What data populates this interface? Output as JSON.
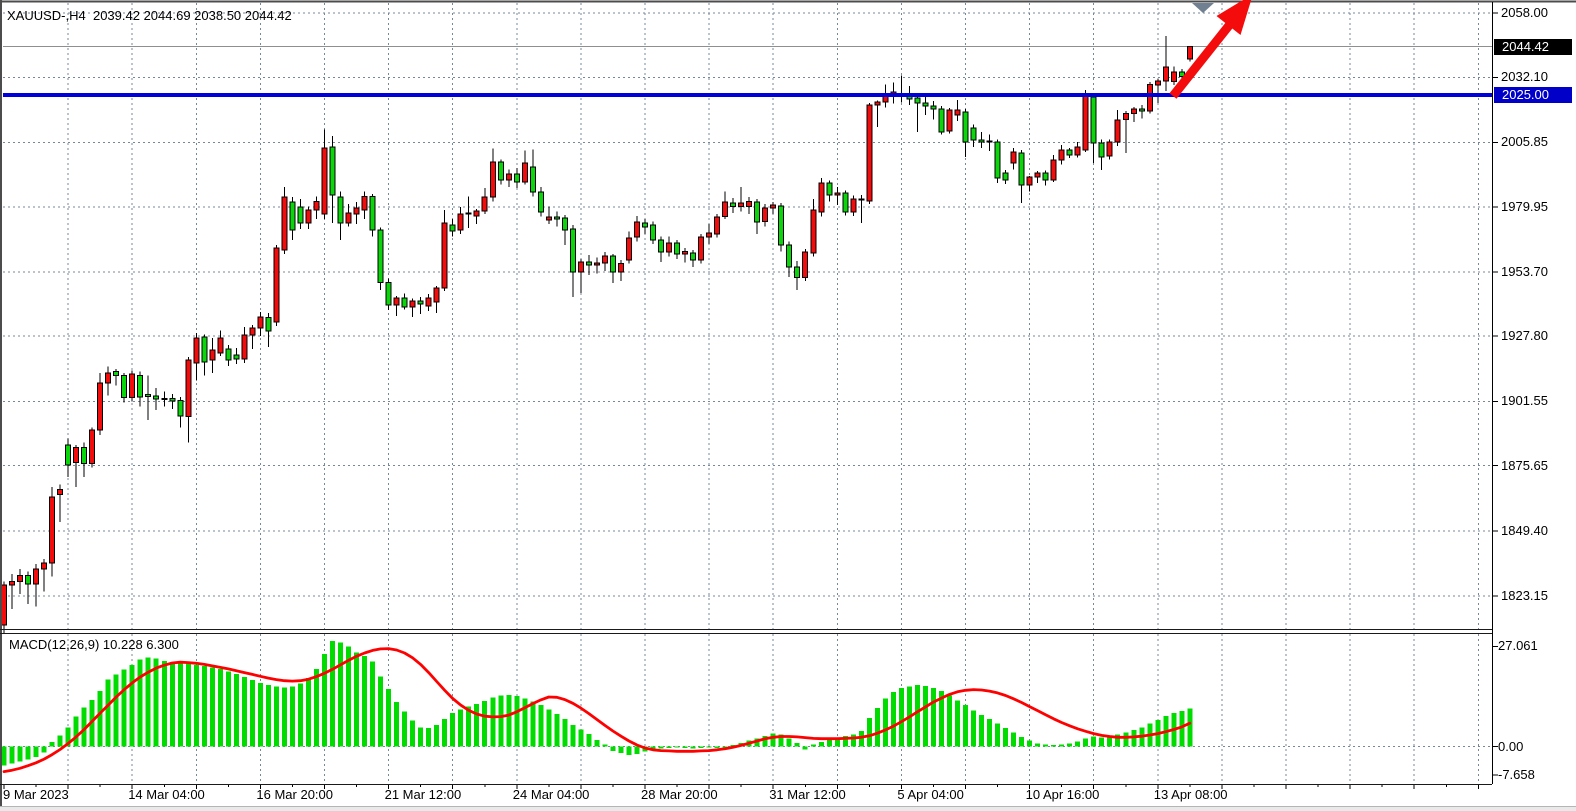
{
  "header": {
    "line": "XAUUSD-,H4  2039.42 2044.69 2038.50 2044.42",
    "symbol": "XAUUSD-",
    "timeframe": "H4",
    "open": "2039.42",
    "high": "2044.69",
    "low": "2038.50",
    "close": "2044.42"
  },
  "price_axis": {
    "labels": [
      {
        "text": "2058.00",
        "price": 2058.0
      },
      {
        "text": "2032.10",
        "price": 2032.1
      },
      {
        "text": "2005.85",
        "price": 2005.85
      },
      {
        "text": "1979.95",
        "price": 1979.95
      },
      {
        "text": "1953.70",
        "price": 1953.7
      },
      {
        "text": "1927.80",
        "price": 1927.8
      },
      {
        "text": "1901.55",
        "price": 1901.55
      },
      {
        "text": "1875.65",
        "price": 1875.65
      },
      {
        "text": "1849.40",
        "price": 1849.4
      },
      {
        "text": "1823.15",
        "price": 1823.15
      }
    ],
    "current_tag": {
      "text": "2044.42",
      "price": 2044.42,
      "bg": "#000000",
      "fg": "#ffffff"
    },
    "level_tag": {
      "text": "2025.00",
      "price": 2025.0,
      "bg": "#0000c8",
      "fg": "#ffffff"
    }
  },
  "time_axis": {
    "labels": [
      {
        "text": "9 Mar 2023",
        "grid": 0
      },
      {
        "text": "14 Mar 04:00",
        "grid": 2
      },
      {
        "text": "16 Mar 20:00",
        "grid": 4
      },
      {
        "text": "21 Mar 12:00",
        "grid": 6
      },
      {
        "text": "24 Mar 04:00",
        "grid": 8
      },
      {
        "text": "28 Mar 20:00",
        "grid": 10
      },
      {
        "text": "31 Mar 12:00",
        "grid": 12
      },
      {
        "text": "5 Apr 04:00",
        "grid": 14
      },
      {
        "text": "10 Apr 16:00",
        "grid": 16
      },
      {
        "text": "13 Apr 08:00",
        "grid": 18
      }
    ]
  },
  "macd": {
    "label_line": "MACD(12,26,9) 10.228 6.300",
    "axis": [
      {
        "text": "27.061",
        "value": 27.061
      },
      {
        "text": "0.00",
        "value": 0
      },
      {
        "text": "-7.658",
        "value": -7.658
      }
    ]
  },
  "annotations": {
    "arrow": {
      "name": "bullish-breakout-arrow",
      "color": "#f40b0b"
    },
    "shift_marker": {
      "name": "chart-shift-marker",
      "color": "#708090"
    },
    "level_line": {
      "price": 2025.0,
      "color": "#0000d8"
    },
    "bid_line": {
      "price": 2044.42,
      "color": "#8f8f8f"
    }
  },
  "colors": {
    "bull_body": "#f20c0c",
    "bear_body": "#0bd60b",
    "bar_outline": "#000000",
    "grid": "#778899",
    "macd_hist": "#00dc00",
    "macd_signal": "#ff0000",
    "background": "#ffffff",
    "text": "#000000"
  },
  "chart_data": {
    "type": "candlestick",
    "symbol": "XAUUSD-",
    "timeframe": "H4",
    "ylim": [
      1810,
      2058
    ],
    "price_gridlines": [
      2058.0,
      2032.1,
      2005.85,
      1979.95,
      1953.7,
      1927.8,
      1901.55,
      1875.65,
      1849.4,
      1823.15
    ],
    "last_ohlc": {
      "open": 2039.42,
      "high": 2044.69,
      "low": 2038.5,
      "close": 2044.42
    },
    "candles": [
      [
        1811.5,
        1829,
        1808,
        1827.5
      ],
      [
        1827.5,
        1832,
        1818,
        1829
      ],
      [
        1829,
        1834,
        1824,
        1831.5
      ],
      [
        1831.5,
        1833,
        1820,
        1828
      ],
      [
        1828,
        1836,
        1819,
        1834
      ],
      [
        1834,
        1838,
        1825,
        1836.5
      ],
      [
        1836.5,
        1867,
        1831,
        1863
      ],
      [
        1864,
        1868,
        1853,
        1866
      ],
      [
        1884,
        1886.5,
        1871,
        1876
      ],
      [
        1877,
        1884,
        1867,
        1883
      ],
      [
        1883,
        1885,
        1871,
        1876.5
      ],
      [
        1876.5,
        1891,
        1875,
        1890
      ],
      [
        1890,
        1913,
        1888,
        1909
      ],
      [
        1909,
        1915.5,
        1904,
        1913
      ],
      [
        1913.5,
        1914.5,
        1908,
        1912
      ],
      [
        1912,
        1913,
        1901,
        1903
      ],
      [
        1903,
        1914,
        1901.5,
        1912.6
      ],
      [
        1912,
        1913.5,
        1899.5,
        1903.3
      ],
      [
        1904.3,
        1912,
        1894,
        1903.5
      ],
      [
        1903.8,
        1907,
        1898,
        1902.5
      ],
      [
        1902.5,
        1905.5,
        1899.5,
        1902.8
      ],
      [
        1902.8,
        1904.5,
        1898.5,
        1901.8
      ],
      [
        1902,
        1903.3,
        1891,
        1895.6
      ],
      [
        1895.5,
        1919.4,
        1885,
        1918.2
      ],
      [
        1917,
        1929,
        1910,
        1927.1
      ],
      [
        1927.5,
        1928.5,
        1912,
        1917.4
      ],
      [
        1918.2,
        1927,
        1913,
        1922.2
      ],
      [
        1921,
        1930,
        1919.8,
        1927.1
      ],
      [
        1922.6,
        1924.2,
        1915.8,
        1918.2
      ],
      [
        1920.2,
        1923,
        1916.6,
        1918.6
      ],
      [
        1918.6,
        1931.5,
        1917,
        1928.3
      ],
      [
        1928.3,
        1932.3,
        1922.7,
        1931.1
      ],
      [
        1931.1,
        1937.6,
        1927.9,
        1935.5
      ],
      [
        1935.3,
        1937.2,
        1923.4,
        1930
      ],
      [
        1933.5,
        1964.5,
        1932,
        1963.3
      ],
      [
        1962.5,
        1988,
        1961,
        1983.9
      ],
      [
        1981.9,
        1983.9,
        1966.6,
        1970.6
      ],
      [
        1979.9,
        1983,
        1971,
        1973.4
      ],
      [
        1973.4,
        1980,
        1971,
        1978.6
      ],
      [
        1978.6,
        1984,
        1975,
        1982
      ],
      [
        1977,
        2011,
        1975,
        2003.6
      ],
      [
        2004,
        2008.4,
        1973.4,
        1984.7
      ],
      [
        1983.9,
        1986,
        1966.6,
        1973.4
      ],
      [
        1973.4,
        1981,
        1972,
        1977.4
      ],
      [
        1977,
        1981.9,
        1973,
        1979.5
      ],
      [
        1978.7,
        1986,
        1975,
        1984
      ],
      [
        1984,
        1985,
        1968,
        1970.5
      ],
      [
        1970.5,
        1971.5,
        1946.4,
        1949.5
      ],
      [
        1949.5,
        1951,
        1938.4,
        1940.4
      ],
      [
        1940.4,
        1944,
        1936,
        1943.2
      ],
      [
        1943.2,
        1945,
        1938.5,
        1939.6
      ],
      [
        1939.6,
        1943,
        1935.5,
        1942
      ],
      [
        1942,
        1943.6,
        1936.8,
        1940.8
      ],
      [
        1940,
        1944.8,
        1938,
        1943.2
      ],
      [
        1941.6,
        1948,
        1937.2,
        1947.2
      ],
      [
        1947.2,
        1978.6,
        1946,
        1973.4
      ],
      [
        1972.6,
        1975,
        1968,
        1970.2
      ],
      [
        1970.6,
        1979.9,
        1969,
        1977
      ],
      [
        1977,
        1984,
        1971.4,
        1977.4
      ],
      [
        1976.2,
        1979,
        1973,
        1978.2
      ],
      [
        1978.2,
        1987.5,
        1977,
        1983.9
      ],
      [
        1983.9,
        2003.5,
        1982,
        1998
      ],
      [
        1998,
        1999,
        1989,
        1990.7
      ],
      [
        1990.7,
        1995,
        1988,
        1993.2
      ],
      [
        1993.2,
        1995.6,
        1987.5,
        1989.9
      ],
      [
        1989.9,
        2002.7,
        1989,
        1997.6
      ],
      [
        1996,
        2003.1,
        1984,
        1985.9
      ],
      [
        1985.9,
        1987.9,
        1976,
        1977.8
      ],
      [
        1974.6,
        1980,
        1973,
        1975.8
      ],
      [
        1975.8,
        1978,
        1972,
        1975
      ],
      [
        1975.4,
        1976.6,
        1964.6,
        1970.6
      ],
      [
        1971,
        1972.6,
        1943.6,
        1953.7
      ],
      [
        1953.7,
        1959,
        1945.3,
        1957.7
      ],
      [
        1957.7,
        1960.5,
        1952.5,
        1956.5
      ],
      [
        1956.5,
        1959.5,
        1953,
        1957.3
      ],
      [
        1957.3,
        1961.7,
        1954,
        1960.1
      ],
      [
        1960.1,
        1961,
        1949.2,
        1953.7
      ],
      [
        1953.7,
        1958.5,
        1950,
        1957
      ],
      [
        1958.5,
        1970,
        1957,
        1967.4
      ],
      [
        1967.8,
        1976.2,
        1966,
        1973.8
      ],
      [
        1973.4,
        1975,
        1969,
        1971.8
      ],
      [
        1972.6,
        1974,
        1965,
        1966.6
      ],
      [
        1966.6,
        1968,
        1957.7,
        1961.7
      ],
      [
        1961.7,
        1968,
        1960,
        1965.4
      ],
      [
        1965.4,
        1966.5,
        1958.9,
        1961
      ],
      [
        1961,
        1963.3,
        1957.5,
        1962
      ],
      [
        1961.3,
        1962.5,
        1955.6,
        1958.5
      ],
      [
        1958.5,
        1969,
        1957,
        1967.8
      ],
      [
        1967.8,
        1973,
        1965,
        1969.4
      ],
      [
        1969,
        1977,
        1967.5,
        1975.8
      ],
      [
        1976,
        1986,
        1975,
        1981.9
      ],
      [
        1981.5,
        1983.5,
        1977.5,
        1980
      ],
      [
        1980,
        1988,
        1978,
        1981.5
      ],
      [
        1980,
        1983.9,
        1977,
        1982
      ],
      [
        1981.9,
        1983,
        1969,
        1973.8
      ],
      [
        1974,
        1981,
        1972,
        1979.5
      ],
      [
        1979.5,
        1981.9,
        1977,
        1980.7
      ],
      [
        1980.3,
        1981.5,
        1962,
        1964.5
      ],
      [
        1964.5,
        1966,
        1951.7,
        1955.7
      ],
      [
        1955.7,
        1958,
        1946.5,
        1951.5
      ],
      [
        1951.5,
        1963,
        1950,
        1961.7
      ],
      [
        1961.3,
        1983,
        1960,
        1978.6
      ],
      [
        1977.9,
        1991.5,
        1976,
        1989.5
      ],
      [
        1989.5,
        1990.5,
        1982,
        1984.7
      ],
      [
        1984.7,
        1988,
        1980.7,
        1985.5
      ],
      [
        1985.5,
        1986.5,
        1976.5,
        1977.8
      ],
      [
        1977.8,
        1984.5,
        1976.2,
        1983.1
      ],
      [
        1983.1,
        1984.7,
        1973.4,
        1982.7
      ],
      [
        1982.3,
        2021.7,
        1981,
        2020.9
      ],
      [
        2020.9,
        2022.7,
        2012.1,
        2022.1
      ],
      [
        2022.1,
        2029.1,
        2020,
        2025
      ],
      [
        2024.6,
        2030,
        2021.5,
        2026.2
      ],
      [
        2024.8,
        2032.9,
        2022,
        2025
      ],
      [
        2025,
        2028.5,
        2021,
        2023.4
      ],
      [
        2023.8,
        2025.5,
        2010.1,
        2021.7
      ],
      [
        2021.7,
        2024.5,
        2017,
        2020.5
      ],
      [
        2020.5,
        2022.5,
        2015,
        2019.3
      ],
      [
        2019.3,
        2020.5,
        2009,
        2010.1
      ],
      [
        2010.5,
        2019.8,
        2009.5,
        2018.9
      ],
      [
        2016.9,
        2022.9,
        2014.5,
        2018.9
      ],
      [
        2018.1,
        2019.3,
        1999.9,
        2006
      ],
      [
        2011.7,
        2013,
        2004,
        2006.9
      ],
      [
        2006.9,
        2010.1,
        2003.6,
        2006.1
      ],
      [
        2006.1,
        2009,
        2002.5,
        2006.5
      ],
      [
        2006,
        2007,
        1989.5,
        1991.5
      ],
      [
        1993.6,
        1994.8,
        1989.1,
        1990.7
      ],
      [
        1997.6,
        2003.7,
        1995,
        2002
      ],
      [
        2001.6,
        2002.8,
        1981.5,
        1988.7
      ],
      [
        1988.7,
        1992.3,
        1986,
        1991.9
      ],
      [
        1991.9,
        1994.4,
        1989.5,
        1993.6
      ],
      [
        1993.6,
        1994.5,
        1988.5,
        1990.8
      ],
      [
        1990.8,
        2000.8,
        1990,
        1998.8
      ],
      [
        1998.8,
        2004.8,
        1997,
        2002.8
      ],
      [
        2002.8,
        2003.6,
        1999.5,
        2000.8
      ],
      [
        2000.8,
        2006,
        1999.8,
        2004
      ],
      [
        2002.8,
        2027,
        2002,
        2025
      ],
      [
        2024.2,
        2025.8,
        1997.6,
        2005.7
      ],
      [
        2005.7,
        2007,
        1994.7,
        1999.9
      ],
      [
        2000.3,
        2007,
        1999,
        2006
      ],
      [
        2006,
        2019,
        2004.5,
        2014.9
      ],
      [
        2015,
        2018.5,
        2001.6,
        2017.5
      ],
      [
        2017.5,
        2020.1,
        2014,
        2019.3
      ],
      [
        2019.3,
        2021,
        2015.5,
        2018.5
      ],
      [
        2018.5,
        2030.3,
        2017.5,
        2029.1
      ],
      [
        2029.1,
        2031.5,
        2021.7,
        2030.7
      ],
      [
        2030.7,
        2048.7,
        2026.5,
        2036.3
      ],
      [
        2030.5,
        2036.5,
        2029,
        2034.2
      ],
      [
        2034.2,
        2035.5,
        2029.5,
        2032.5
      ],
      [
        2039.42,
        2044.69,
        2038.5,
        2044.42
      ]
    ],
    "macd": {
      "type": "macd",
      "params": [
        12,
        26,
        9
      ],
      "current": 10.228,
      "current_signal": 6.3,
      "ylim": [
        -7.658,
        27.061
      ],
      "histogram": [
        -5.1,
        -4.6,
        -4.1,
        -3.5,
        -2.8,
        -1.6,
        1.2,
        3.0,
        5.2,
        8.1,
        10.5,
        12.6,
        15.0,
        18.1,
        19.5,
        20.8,
        22.0,
        23.5,
        24.1,
        23.8,
        23.2,
        22.8,
        22.6,
        22.4,
        22.1,
        21.8,
        21.4,
        21.0,
        20.3,
        19.6,
        18.8,
        18.0,
        17.2,
        16.6,
        16.2,
        16.0,
        16.3,
        17.0,
        18.5,
        21.0,
        25.0,
        28.6,
        28.2,
        27.0,
        25.5,
        24.5,
        23.0,
        19.0,
        15.5,
        12.0,
        9.5,
        7.0,
        5.2,
        5.0,
        5.8,
        7.5,
        9.0,
        10.0,
        10.8,
        11.5,
        12.3,
        13.2,
        13.8,
        14.0,
        13.6,
        13.0,
        12.2,
        11.2,
        10.0,
        8.8,
        7.5,
        5.8,
        4.6,
        3.4,
        1.8,
        0.6,
        -1.2,
        -1.8,
        -2.3,
        -2.0,
        -1.4,
        -0.8,
        -0.5,
        -0.4,
        -0.3,
        -0.4,
        -0.5,
        -0.4,
        -0.3,
        -0.4,
        -0.2,
        0.4,
        1.0,
        1.6,
        2.2,
        2.9,
        3.5,
        3.2,
        2.2,
        1.0,
        -0.8,
        0.6,
        1.2,
        1.8,
        2.3,
        2.8,
        3.3,
        4.2,
        7.7,
        10.4,
        13.0,
        14.8,
        15.8,
        16.3,
        16.7,
        16.4,
        15.8,
        15.0,
        13.8,
        12.5,
        11.2,
        9.8,
        8.5,
        7.4,
        6.2,
        5.0,
        3.8,
        2.6,
        1.6,
        0.8,
        0.5,
        0.4,
        0.5,
        0.8,
        1.4,
        2.2,
        2.7,
        2.5,
        2.8,
        3.2,
        3.8,
        4.4,
        5.2,
        6.2,
        7.2,
        8.2,
        9.0,
        9.6,
        10.228
      ],
      "signal": [
        -6.8,
        -6.4,
        -5.9,
        -5.2,
        -4.4,
        -3.4,
        -2.2,
        -0.8,
        0.8,
        2.6,
        4.6,
        6.8,
        9.0,
        11.2,
        13.4,
        15.4,
        17.2,
        18.8,
        20.1,
        21.2,
        22.0,
        22.6,
        22.8,
        22.7,
        22.5,
        22.2,
        21.8,
        21.4,
        21.0,
        20.5,
        20.0,
        19.5,
        19.0,
        18.5,
        18.1,
        17.8,
        17.7,
        17.8,
        18.2,
        18.9,
        19.8,
        20.9,
        22.1,
        23.3,
        24.4,
        25.3,
        26.0,
        26.4,
        26.5,
        26.1,
        25.3,
        24.0,
        22.2,
        20.0,
        17.6,
        15.2,
        13.0,
        11.2,
        9.8,
        8.8,
        8.2,
        8.0,
        8.1,
        8.5,
        9.4,
        10.5,
        11.6,
        12.6,
        13.4,
        13.3,
        12.7,
        11.7,
        10.4,
        8.9,
        7.3,
        5.7,
        4.2,
        2.8,
        1.5,
        0.4,
        -0.4,
        -0.9,
        -1.1,
        -1.2,
        -1.3,
        -1.3,
        -1.3,
        -1.2,
        -1.1,
        -0.9,
        -0.6,
        -0.2,
        0.3,
        0.9,
        1.5,
        2.1,
        2.5,
        2.7,
        2.7,
        2.6,
        2.4,
        2.2,
        2.1,
        2.1,
        2.1,
        2.2,
        2.3,
        2.5,
        2.9,
        3.6,
        4.5,
        5.5,
        6.7,
        8.0,
        9.4,
        10.7,
        12.0,
        13.1,
        14.1,
        14.8,
        15.2,
        15.4,
        15.3,
        15.0,
        14.5,
        13.8,
        12.9,
        11.9,
        10.8,
        9.7,
        8.6,
        7.5,
        6.5,
        5.6,
        4.8,
        4.1,
        3.5,
        3.0,
        2.7,
        2.5,
        2.5,
        2.6,
        2.8,
        3.1,
        3.5,
        4.0,
        4.6,
        5.3,
        6.3
      ]
    }
  }
}
